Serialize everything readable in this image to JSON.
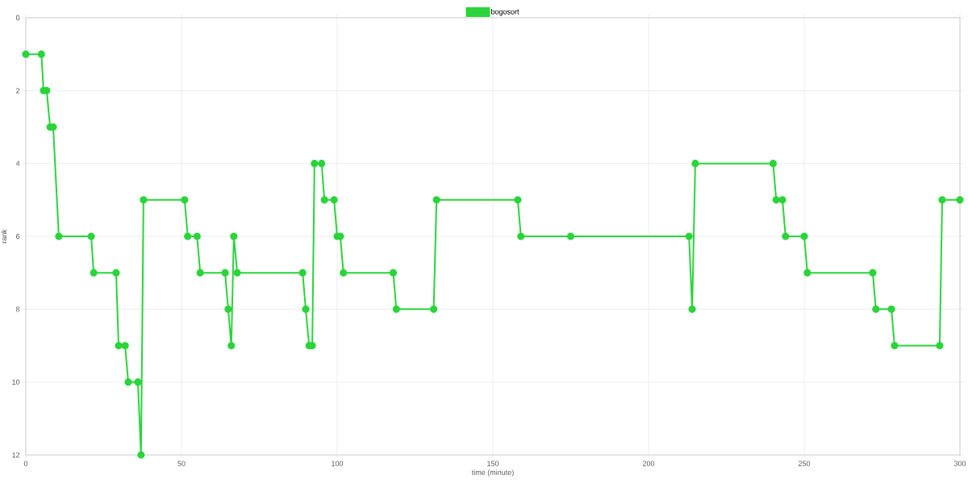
{
  "chart_data": {
    "type": "line",
    "xlabel": "time (minute)",
    "ylabel": "rank",
    "x": [
      0,
      5,
      5.7,
      6.7,
      7.8,
      8.8,
      10.6,
      21,
      21.8,
      29,
      29.8,
      31.9,
      32.9,
      36,
      37,
      37.8,
      51,
      52,
      55,
      56,
      64,
      65,
      66,
      66.8,
      67.9,
      88.9,
      89.9,
      91,
      92,
      92.7,
      95,
      95.9,
      99,
      100,
      101,
      102,
      118,
      119,
      131,
      131.9,
      158,
      159,
      175,
      213,
      214,
      215,
      240,
      241,
      243,
      244,
      250,
      251,
      272,
      273,
      278,
      279,
      293.5,
      294.3,
      300
    ],
    "series": [
      {
        "name": "bogosort",
        "color": "#2ad43a",
        "values": [
          1,
          1,
          2,
          2,
          3,
          3,
          6,
          6,
          7,
          7,
          9,
          9,
          10,
          10,
          12,
          5,
          5,
          6,
          6,
          7,
          7,
          8,
          9,
          6,
          7,
          7,
          8,
          9,
          9,
          4,
          4,
          5,
          5,
          6,
          6,
          7,
          7,
          8,
          8,
          5,
          5,
          6,
          6,
          6,
          8,
          4,
          4,
          5,
          5,
          6,
          6,
          7,
          7,
          8,
          8,
          9,
          9,
          5,
          5
        ]
      }
    ],
    "xlim": [
      0,
      300
    ],
    "xticks": [
      0,
      50,
      100,
      150,
      200,
      250,
      300
    ],
    "ylim": [
      12,
      0
    ],
    "yticks": [
      0,
      2,
      4,
      6,
      8,
      10,
      12
    ],
    "grid": true,
    "legend": "top",
    "marker": "circle",
    "line_style": "solid"
  }
}
